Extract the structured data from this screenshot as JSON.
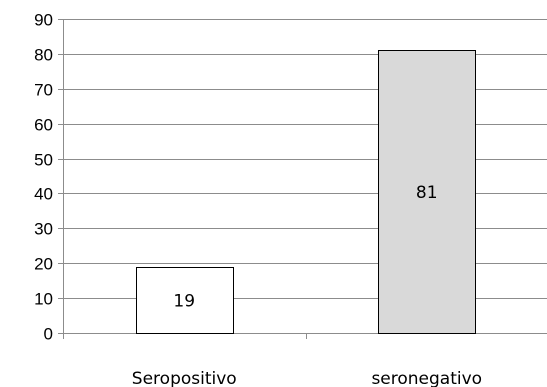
{
  "chart_data": {
    "type": "bar",
    "title": "",
    "xlabel": "",
    "ylabel": "",
    "categories": [
      "Seropositivo",
      "seronegativo"
    ],
    "values": [
      19,
      81
    ],
    "data_labels": [
      "19",
      "81"
    ],
    "ylim": [
      0,
      90
    ],
    "yticks": [
      0,
      10,
      20,
      30,
      40,
      50,
      60,
      70,
      80,
      90
    ],
    "ytick_labels": [
      "0",
      "10",
      "20",
      "30",
      "40",
      "50",
      "60",
      "70",
      "80",
      "90"
    ],
    "grid": true,
    "legend": "none",
    "bar_colors": [
      "#ffffff",
      "#d9d9d9"
    ],
    "bar_outline": "#000000",
    "grid_color": "#8c8c8c"
  }
}
